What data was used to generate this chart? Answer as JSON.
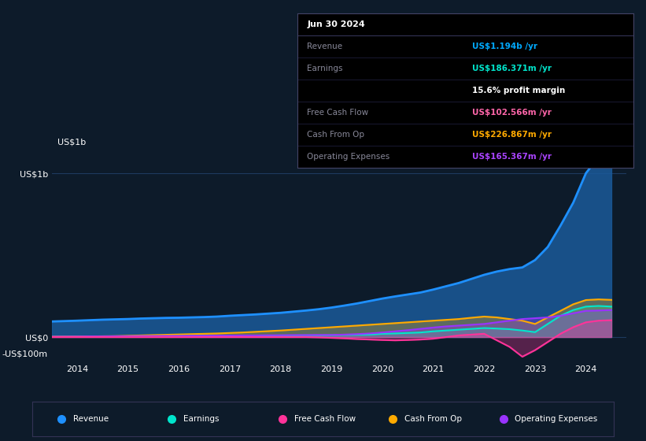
{
  "bg_color": "#0d1b2a",
  "plot_bg_color": "#0d1b2a",
  "grid_color": "#1e3a5f",
  "title_box_bg": "#000000",
  "title_box_border": "#333355",
  "tooltip_title": "Jun 30 2024",
  "tooltip_rows": [
    {
      "label": "Revenue",
      "value": "US$1.194b /yr",
      "color": "#00aaff"
    },
    {
      "label": "Earnings",
      "value": "US$186.371m /yr",
      "color": "#00e5cc"
    },
    {
      "label": "",
      "value": "15.6% profit margin",
      "color": "#ffffff"
    },
    {
      "label": "Free Cash Flow",
      "value": "US$102.566m /yr",
      "color": "#ff66aa"
    },
    {
      "label": "Cash From Op",
      "value": "US$226.867m /yr",
      "color": "#ffaa00"
    },
    {
      "label": "Operating Expenses",
      "value": "US$165.367m /yr",
      "color": "#aa44ff"
    }
  ],
  "years": [
    2013.5,
    2014,
    2014.25,
    2014.5,
    2014.75,
    2015,
    2015.25,
    2015.5,
    2015.75,
    2016,
    2016.25,
    2016.5,
    2016.75,
    2017,
    2017.25,
    2017.5,
    2017.75,
    2018,
    2018.25,
    2018.5,
    2018.75,
    2019,
    2019.25,
    2019.5,
    2019.75,
    2020,
    2020.25,
    2020.5,
    2020.75,
    2021,
    2021.25,
    2021.5,
    2021.75,
    2022,
    2022.25,
    2022.5,
    2022.75,
    2023,
    2023.25,
    2023.5,
    2023.75,
    2024,
    2024.25,
    2024.5
  ],
  "revenue": [
    95,
    100,
    103,
    106,
    108,
    110,
    113,
    115,
    117,
    118,
    120,
    122,
    125,
    130,
    134,
    138,
    143,
    148,
    155,
    162,
    170,
    180,
    192,
    205,
    220,
    235,
    248,
    260,
    272,
    290,
    310,
    330,
    355,
    380,
    400,
    415,
    425,
    470,
    550,
    680,
    820,
    1000,
    1100,
    1194
  ],
  "earnings": [
    2,
    3,
    3,
    4,
    4,
    5,
    5,
    5,
    6,
    6,
    6,
    7,
    7,
    8,
    8,
    9,
    9,
    10,
    10,
    11,
    11,
    12,
    13,
    14,
    15,
    20,
    22,
    25,
    28,
    35,
    40,
    45,
    50,
    55,
    52,
    48,
    40,
    30,
    80,
    130,
    165,
    186,
    190,
    186
  ],
  "free_cash_flow": [
    0,
    0,
    0,
    0,
    0,
    0,
    0,
    0,
    0,
    0,
    0,
    0,
    0,
    0,
    0,
    0,
    0,
    0,
    0,
    0,
    -2,
    -5,
    -8,
    -12,
    -15,
    -18,
    -20,
    -18,
    -15,
    -10,
    0,
    10,
    15,
    20,
    -20,
    -60,
    -120,
    -80,
    -30,
    20,
    60,
    90,
    100,
    103
  ],
  "cash_from_op": [
    2,
    3,
    4,
    5,
    6,
    8,
    10,
    12,
    14,
    16,
    18,
    20,
    22,
    25,
    28,
    32,
    36,
    40,
    45,
    50,
    55,
    60,
    65,
    70,
    75,
    80,
    85,
    90,
    95,
    100,
    105,
    110,
    118,
    125,
    120,
    110,
    100,
    80,
    120,
    160,
    200,
    226,
    230,
    227
  ],
  "operating_expenses": [
    2,
    3,
    4,
    4,
    5,
    5,
    6,
    6,
    7,
    7,
    8,
    8,
    9,
    9,
    10,
    10,
    11,
    11,
    12,
    12,
    13,
    13,
    15,
    18,
    22,
    28,
    35,
    42,
    50,
    58,
    65,
    70,
    75,
    80,
    90,
    100,
    110,
    115,
    120,
    130,
    145,
    160,
    162,
    165
  ],
  "revenue_color": "#1e90ff",
  "revenue_fill": "#1a5a9a",
  "earnings_color": "#00e5cc",
  "fcf_color": "#ff3399",
  "cfo_color": "#ffaa00",
  "opex_color": "#9933ff",
  "ylim_min": -150,
  "ylim_max": 1250,
  "yticks": [
    -100,
    0,
    1000
  ],
  "ytick_labels": [
    "-US$100m",
    "US$0",
    "US$1b"
  ],
  "xticks": [
    2014,
    2015,
    2016,
    2017,
    2018,
    2019,
    2020,
    2021,
    2022,
    2023,
    2024
  ],
  "legend_items": [
    {
      "label": "Revenue",
      "color": "#1e90ff"
    },
    {
      "label": "Earnings",
      "color": "#00e5cc"
    },
    {
      "label": "Free Cash Flow",
      "color": "#ff3399"
    },
    {
      "label": "Cash From Op",
      "color": "#ffaa00"
    },
    {
      "label": "Operating Expenses",
      "color": "#9933ff"
    }
  ]
}
